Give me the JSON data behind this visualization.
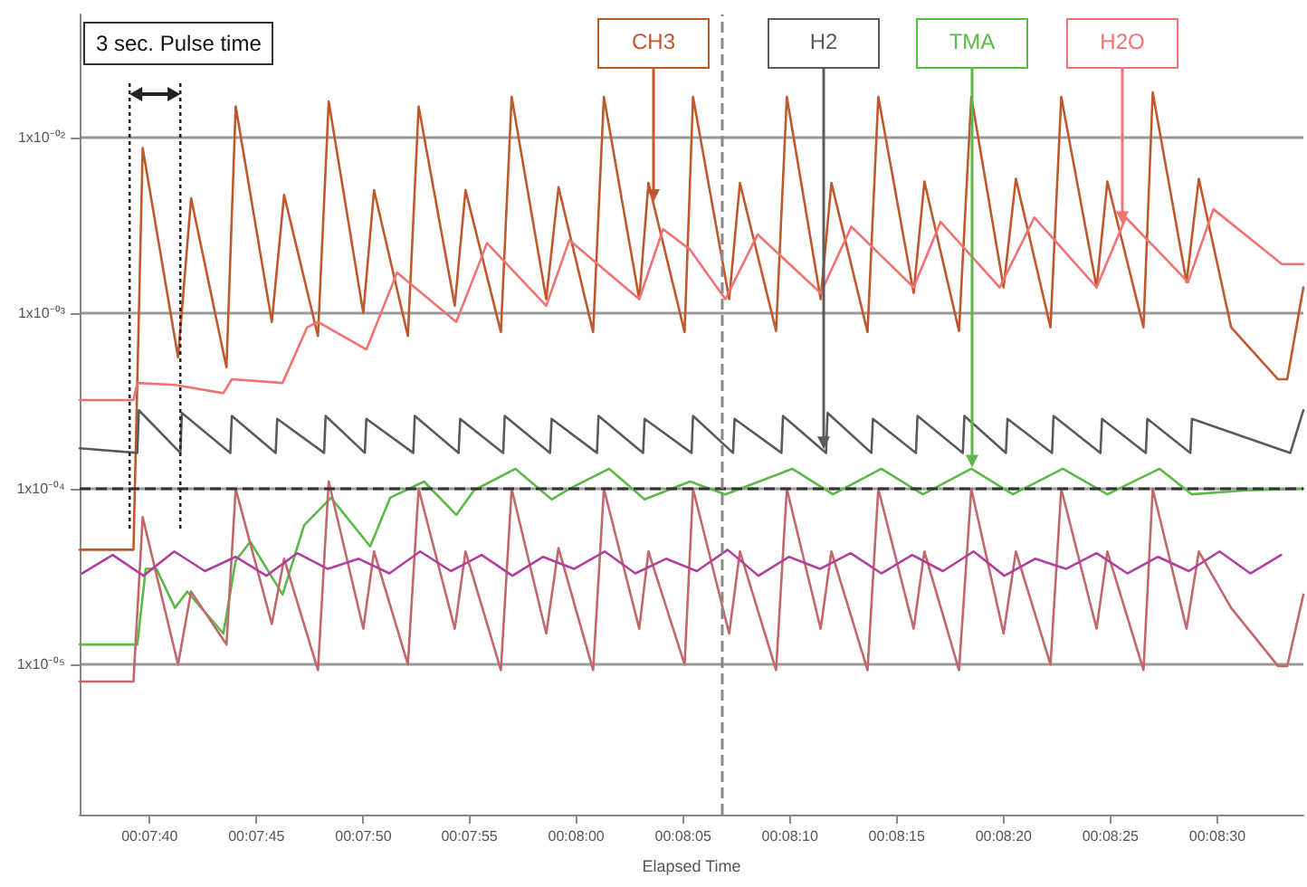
{
  "chart_data": {
    "type": "line",
    "xlabel": "Elapsed Time",
    "annotations": [
      {
        "text": "3 sec. Pulse time",
        "x": 0.12752,
        "y": 5.9e-05
      }
    ],
    "log": true,
    "grid": "y",
    "marker": "none",
    "xlim": [
      0.12687,
      0.14279
    ],
    "xticks": [
      {
        "value": 0.12778,
        "label": "00:07:40"
      },
      {
        "value": 0.12917,
        "label": "00:07:45"
      },
      {
        "value": 0.13056,
        "label": "00:07:50"
      },
      {
        "value": 0.13194,
        "label": "00:07:55"
      },
      {
        "value": 0.13333,
        "label": "00:08:00"
      },
      {
        "value": 0.13472,
        "label": "00:08:05"
      },
      {
        "value": 0.13611,
        "label": "00:08:10"
      },
      {
        "value": 0.1375,
        "label": "00:08:15"
      },
      {
        "value": 0.13889,
        "label": "00:08:20"
      },
      {
        "value": 0.14028,
        "label": "00:08:25"
      },
      {
        "value": 0.14167,
        "label": "00:08:30"
      }
    ],
    "ylim": [
      1.4e-06,
      0.05
    ],
    "yticks": [
      {
        "value": 1e-05,
        "label": "1x10⁻⁰⁵"
      },
      {
        "value": 0.0001,
        "label": "1x10⁻⁰⁴"
      },
      {
        "value": 0.001,
        "label": "1x10⁻⁰³"
      },
      {
        "value": 0.01,
        "label": "1x10⁻⁰²"
      }
    ],
    "ref_lines": [
      {
        "axis": "y",
        "value": 0.0001,
        "line_style": "dashed",
        "color": "#333333"
      },
      {
        "axis": "x",
        "value": 0.13523,
        "line_style": "dashed",
        "color": "#888888"
      }
    ],
    "series": [
      {
        "name": "CH3",
        "color": "#c0582e",
        "x": [
          0.12687,
          0.12757,
          0.12769,
          0.12815,
          0.12832,
          0.12878,
          0.1289,
          0.12937,
          0.12953,
          0.12997,
          0.13011,
          0.13056,
          0.1307,
          0.13114,
          0.13128,
          0.13175,
          0.13189,
          0.13235,
          0.13249,
          0.13294,
          0.1331,
          0.13355,
          0.13369,
          0.13415,
          0.13427,
          0.13474,
          0.13485,
          0.13532,
          0.13546,
          0.13593,
          0.13607,
          0.13651,
          0.13665,
          0.13712,
          0.13726,
          0.13772,
          0.13786,
          0.13831,
          0.13847,
          0.13889,
          0.13905,
          0.1395,
          0.13964,
          0.1401,
          0.14024,
          0.14071,
          0.14083,
          0.14127,
          0.14143,
          0.14185,
          0.14246,
          0.14258,
          0.14279
        ],
        "values": [
          4.5e-05,
          4.5e-05,
          0.0087,
          0.00056,
          0.0045,
          0.00049,
          0.015,
          0.00089,
          0.0047,
          0.00074,
          0.016,
          0.001,
          0.005,
          0.00074,
          0.015,
          0.0011,
          0.005,
          0.00078,
          0.017,
          0.0012,
          0.0052,
          0.00078,
          0.017,
          0.0012,
          0.0055,
          0.00078,
          0.017,
          0.0012,
          0.0055,
          0.00079,
          0.017,
          0.0012,
          0.0055,
          0.00078,
          0.017,
          0.0013,
          0.0056,
          0.00079,
          0.017,
          0.0014,
          0.0058,
          0.00083,
          0.017,
          0.0014,
          0.0056,
          0.00083,
          0.018,
          0.0015,
          0.0058,
          0.00083,
          0.00042,
          0.00042,
          0.0014
        ]
      },
      {
        "name": "H2",
        "color": "#5a5a5a",
        "x": [
          0.12687,
          0.12762,
          0.12764,
          0.12818,
          0.1282,
          0.12883,
          0.12885,
          0.12942,
          0.12944,
          0.13005,
          0.13007,
          0.13058,
          0.1306,
          0.13121,
          0.13123,
          0.1318,
          0.13182,
          0.13238,
          0.1324,
          0.13299,
          0.13301,
          0.1336,
          0.13362,
          0.1342,
          0.13422,
          0.13483,
          0.13485,
          0.13537,
          0.13539,
          0.136,
          0.13602,
          0.13658,
          0.1366,
          0.13717,
          0.13719,
          0.13775,
          0.13777,
          0.13836,
          0.13838,
          0.13892,
          0.13894,
          0.13952,
          0.13954,
          0.14015,
          0.14017,
          0.14074,
          0.14076,
          0.14132,
          0.14134,
          0.14262,
          0.14279
        ],
        "values": [
          0.00017,
          0.00016,
          0.00028,
          0.00016,
          0.00027,
          0.00016,
          0.00026,
          0.00016,
          0.00025,
          0.00016,
          0.00026,
          0.00016,
          0.00025,
          0.00016,
          0.00026,
          0.00016,
          0.00025,
          0.00016,
          0.00026,
          0.00016,
          0.00025,
          0.00016,
          0.00026,
          0.00016,
          0.00025,
          0.00016,
          0.00026,
          0.00016,
          0.00025,
          0.00016,
          0.00026,
          0.00016,
          0.00027,
          0.00016,
          0.00025,
          0.00016,
          0.00026,
          0.00016,
          0.00026,
          0.00016,
          0.00025,
          0.00016,
          0.00026,
          0.00016,
          0.00025,
          0.00016,
          0.00025,
          0.00016,
          0.00025,
          0.00016,
          0.00028
        ]
      },
      {
        "name": "TMA",
        "color": "#5cb848",
        "x": [
          0.12687,
          0.12762,
          0.12773,
          0.12787,
          0.12811,
          0.12827,
          0.12874,
          0.1289,
          0.12909,
          0.12951,
          0.12979,
          0.13014,
          0.13065,
          0.13091,
          0.13135,
          0.13177,
          0.132,
          0.13254,
          0.13301,
          0.13324,
          0.13376,
          0.13422,
          0.13457,
          0.13481,
          0.13527,
          0.13614,
          0.13667,
          0.1373,
          0.13784,
          0.13847,
          0.13901,
          0.13966,
          0.14024,
          0.14092,
          0.14134,
          0.14204,
          0.14279
        ],
        "values": [
          1.3e-05,
          1.3e-05,
          3.5e-05,
          3.5e-05,
          2.1e-05,
          2.6e-05,
          1.5e-05,
          3.9e-05,
          5e-05,
          2.5e-05,
          6.2e-05,
          8.9e-05,
          4.7e-05,
          8.9e-05,
          0.00011,
          7.1e-05,
          9.8e-05,
          0.00013,
          8.7e-05,
          0.0001,
          0.00013,
          8.7e-05,
          0.0001,
          0.00011,
          9.3e-05,
          0.00013,
          9.3e-05,
          0.00013,
          9.3e-05,
          0.00013,
          9.3e-05,
          0.00013,
          9.3e-05,
          0.00013,
          9.3e-05,
          9.8e-05,
          0.0001
        ]
      },
      {
        "name": "H2O",
        "color": "#f07272",
        "x": [
          0.12687,
          0.12757,
          0.12762,
          0.12811,
          0.12874,
          0.12885,
          0.12951,
          0.12983,
          0.12997,
          0.1306,
          0.131,
          0.13177,
          0.13217,
          0.13294,
          0.13324,
          0.13415,
          0.13446,
          0.13481,
          0.13527,
          0.13569,
          0.13651,
          0.13691,
          0.13772,
          0.13807,
          0.13884,
          0.13929,
          0.1401,
          0.14048,
          0.14129,
          0.14162,
          0.14251,
          0.14279
        ],
        "values": [
          0.00032,
          0.00032,
          0.0004,
          0.00039,
          0.00035,
          0.00042,
          0.0004,
          0.00083,
          0.00089,
          0.00062,
          0.0017,
          0.00089,
          0.0025,
          0.0011,
          0.0026,
          0.0012,
          0.003,
          0.0023,
          0.0012,
          0.0028,
          0.0013,
          0.0031,
          0.0014,
          0.0033,
          0.0014,
          0.0035,
          0.0014,
          0.0035,
          0.0015,
          0.0039,
          0.0019,
          0.0019
        ]
      },
      {
        "color": "#c0686a",
        "x": [
          0.12687,
          0.12757,
          0.12769,
          0.12815,
          0.12832,
          0.12878,
          0.1289,
          0.12937,
          0.12953,
          0.12997,
          0.13011,
          0.13056,
          0.1307,
          0.13114,
          0.13128,
          0.13175,
          0.13189,
          0.13235,
          0.13249,
          0.13294,
          0.1331,
          0.13355,
          0.13369,
          0.13415,
          0.13427,
          0.13474,
          0.13485,
          0.13532,
          0.13546,
          0.13593,
          0.13607,
          0.13651,
          0.13665,
          0.13712,
          0.13726,
          0.13772,
          0.13786,
          0.13831,
          0.13847,
          0.13889,
          0.13905,
          0.1395,
          0.13964,
          0.1401,
          0.14024,
          0.14071,
          0.14083,
          0.14127,
          0.14143,
          0.14185,
          0.14246,
          0.14258,
          0.14279
        ],
        "values": [
          8e-06,
          8e-06,
          6.9e-05,
          1e-05,
          2.6e-05,
          1.3e-05,
          0.0001,
          1.7e-05,
          4e-05,
          9.3e-06,
          0.00011,
          1.6e-05,
          4.4e-05,
          1e-05,
          0.0001,
          1.6e-05,
          4.4e-05,
          9.3e-06,
          0.0001,
          1.5e-05,
          4.6e-05,
          9.3e-06,
          0.0001,
          1.6e-05,
          4.4e-05,
          1e-05,
          0.0001,
          1.5e-05,
          4.4e-05,
          9.3e-06,
          0.0001,
          1.6e-05,
          4.4e-05,
          9.3e-06,
          0.0001,
          1.6e-05,
          4.4e-05,
          9.3e-06,
          0.0001,
          1.5e-05,
          4.4e-05,
          1e-05,
          0.0001,
          1.6e-05,
          4.4e-05,
          9.3e-06,
          0.0001,
          1.6e-05,
          4.4e-05,
          2.1e-05,
          9.8e-06,
          9.8e-06,
          2.5e-05
        ]
      },
      {
        "color": "#b0409e",
        "x": [
          0.1269,
          0.1273,
          0.1277,
          0.1281,
          0.1285,
          0.1289,
          0.1293,
          0.1297,
          0.1301,
          0.1305,
          0.1309,
          0.1313,
          0.1317,
          0.1321,
          0.1325,
          0.1329,
          0.1333,
          0.1337,
          0.1341,
          0.1345,
          0.1349,
          0.1353,
          0.1357,
          0.1361,
          0.1365,
          0.1369,
          0.1373,
          0.1377,
          0.1381,
          0.1385,
          0.1389,
          0.1393,
          0.1397,
          0.1401,
          0.1405,
          0.1409,
          0.1413,
          0.1417,
          0.1421,
          0.1425
        ],
        "values": [
          3.3e-05,
          4.2e-05,
          3.2e-05,
          4.4e-05,
          3.4e-05,
          4.1e-05,
          3.2e-05,
          4.3e-05,
          3.5e-05,
          4e-05,
          3.3e-05,
          4.4e-05,
          3.4e-05,
          4.2e-05,
          3.2e-05,
          4.1e-05,
          3.5e-05,
          4.4e-05,
          3.3e-05,
          4e-05,
          3.4e-05,
          4.5e-05,
          3.2e-05,
          4.1e-05,
          3.5e-05,
          4.3e-05,
          3.3e-05,
          4.2e-05,
          3.4e-05,
          4.4e-05,
          3.2e-05,
          4e-05,
          3.5e-05,
          4.3e-05,
          3.3e-05,
          4.1e-05,
          3.4e-05,
          4.4e-05,
          3.3e-05,
          4.2e-05
        ]
      }
    ]
  }
}
